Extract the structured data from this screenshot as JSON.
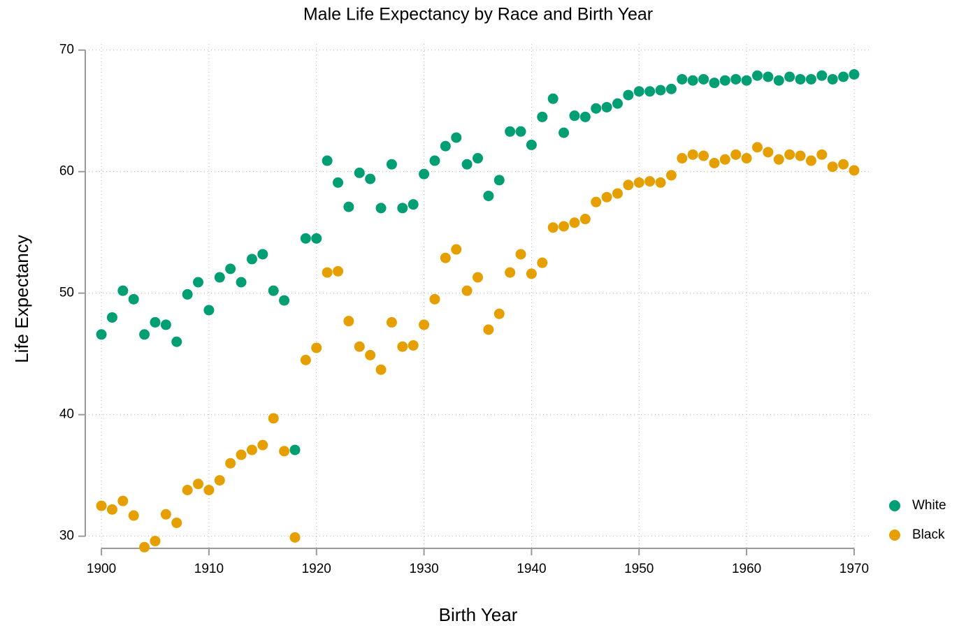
{
  "chart_data": {
    "type": "scatter",
    "title": "Male Life Expectancy by Race and Birth Year",
    "x_label": "Birth Year",
    "y_label": "Life Expectancy",
    "x": [
      1900,
      1901,
      1902,
      1903,
      1904,
      1905,
      1906,
      1907,
      1908,
      1909,
      1910,
      1911,
      1912,
      1913,
      1914,
      1915,
      1916,
      1917,
      1918,
      1919,
      1920,
      1921,
      1922,
      1923,
      1924,
      1925,
      1926,
      1927,
      1928,
      1929,
      1930,
      1931,
      1932,
      1933,
      1934,
      1935,
      1936,
      1937,
      1938,
      1939,
      1940,
      1941,
      1942,
      1943,
      1944,
      1945,
      1946,
      1947,
      1948,
      1949,
      1950,
      1951,
      1952,
      1953,
      1954,
      1955,
      1956,
      1957,
      1958,
      1959,
      1960,
      1961,
      1962,
      1963,
      1964,
      1965,
      1966,
      1967,
      1968,
      1969,
      1970
    ],
    "series": [
      {
        "name": "White",
        "color": "#009e73",
        "values": [
          46.6,
          48.0,
          50.2,
          49.5,
          46.6,
          47.6,
          47.4,
          46.0,
          49.9,
          50.9,
          48.6,
          51.3,
          52.0,
          50.9,
          52.8,
          53.2,
          50.2,
          49.4,
          37.1,
          54.5,
          54.5,
          60.9,
          59.1,
          57.1,
          59.9,
          59.4,
          57.0,
          60.6,
          57.0,
          57.3,
          59.8,
          60.9,
          62.1,
          62.8,
          60.6,
          61.1,
          58.0,
          59.3,
          63.3,
          63.3,
          62.2,
          64.5,
          66.0,
          63.2,
          64.6,
          64.5,
          65.2,
          65.3,
          65.6,
          66.3,
          66.6,
          66.6,
          66.7,
          66.8,
          67.6,
          67.5,
          67.6,
          67.3,
          67.5,
          67.6,
          67.5,
          67.9,
          67.8,
          67.5,
          67.8,
          67.6,
          67.6,
          67.9,
          67.6,
          67.8,
          68.0
        ]
      },
      {
        "name": "Black",
        "color": "#e69f00",
        "values": [
          32.5,
          32.2,
          32.9,
          31.7,
          29.1,
          29.6,
          31.8,
          31.1,
          33.8,
          34.3,
          33.8,
          34.6,
          36.0,
          36.7,
          37.1,
          37.5,
          39.7,
          37.0,
          29.9,
          44.5,
          45.5,
          51.7,
          51.8,
          47.7,
          45.6,
          44.9,
          43.7,
          47.6,
          45.6,
          45.7,
          47.4,
          49.5,
          52.9,
          53.6,
          50.2,
          51.3,
          47.0,
          48.3,
          51.7,
          53.2,
          51.6,
          52.5,
          55.4,
          55.5,
          55.8,
          56.1,
          57.5,
          57.9,
          58.2,
          58.9,
          59.1,
          59.2,
          59.1,
          59.7,
          61.1,
          61.4,
          61.3,
          60.7,
          61.0,
          61.4,
          61.1,
          62.0,
          61.6,
          61.0,
          61.4,
          61.3,
          60.9,
          61.4,
          60.4,
          60.6,
          60.1
        ]
      }
    ],
    "xlim": [
      1898.5,
      1971.5
    ],
    "xticks": [
      1900,
      1910,
      1920,
      1930,
      1940,
      1950,
      1960,
      1970
    ],
    "ylim": [
      29,
      70.5
    ],
    "yticks": [
      30,
      40,
      50,
      60,
      70
    ],
    "grid": true,
    "legend": "right"
  }
}
